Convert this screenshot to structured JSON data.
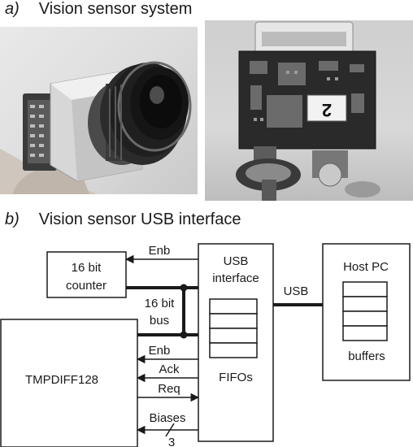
{
  "section_a": {
    "letter": "a)",
    "title": "Vision sensor system"
  },
  "section_b": {
    "letter": "b)",
    "title": "Vision sensor USB interface"
  },
  "photos": {
    "board_label": "2"
  },
  "diagram": {
    "counter": {
      "line1": "16 bit",
      "line2": "counter"
    },
    "usb_interface": {
      "line1": "USB",
      "line2": "interface"
    },
    "fifos_label": "FIFOs",
    "host": {
      "title": "Host PC",
      "buffers_label": "buffers"
    },
    "usb_link_label": "USB",
    "bus": {
      "line1": "16 bit",
      "line2": "bus"
    },
    "sensor_label": "TMPDIFF128",
    "signals": {
      "enb_top": "Enb",
      "enb": "Enb",
      "ack": "Ack",
      "req": "Req",
      "biases": "Biases",
      "biases_count": "3"
    }
  }
}
